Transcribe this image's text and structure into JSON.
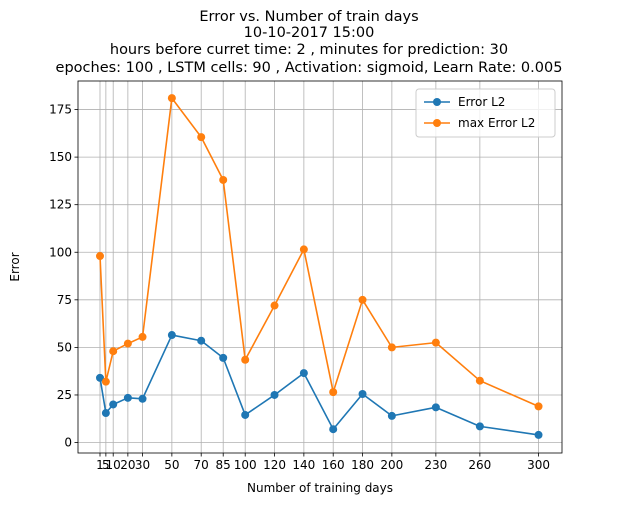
{
  "chart_data": {
    "type": "line",
    "title_lines": [
      "Error vs. Number of train days",
      "10-10-2017 15:00",
      "hours before curret time: 2 , minutes for prediction: 30",
      "epoches: 100 , LSTM cells: 90 , Activation: sigmoid, Learn Rate: 0.005"
    ],
    "xlabel": "Number of training days",
    "ylabel": "Error",
    "x": [
      1,
      5,
      10,
      20,
      30,
      50,
      70,
      85,
      100,
      120,
      140,
      160,
      180,
      200,
      230,
      260,
      300
    ],
    "x_tick_labels": [
      "1",
      "5",
      "10",
      "20",
      "30",
      "50",
      "70",
      "85",
      "100",
      "120",
      "140",
      "160",
      "180",
      "200",
      "230",
      "260",
      "300"
    ],
    "y_ticks": [
      0,
      25,
      50,
      75,
      100,
      125,
      150,
      175
    ],
    "y_tick_labels": [
      "0",
      "25",
      "50",
      "75",
      "100",
      "125",
      "150",
      "175"
    ],
    "xlim": [
      -14,
      316
    ],
    "ylim": [
      -5.5,
      190
    ],
    "grid": true,
    "legend_position": "top-right",
    "series": [
      {
        "name": "Error L2",
        "color": "#1f77b4",
        "values": [
          34,
          15.5,
          20,
          23.5,
          23,
          56.5,
          53.5,
          44.5,
          14.5,
          25,
          36.5,
          7,
          25.5,
          14,
          18.5,
          8.5,
          4
        ]
      },
      {
        "name": "max Error L2",
        "color": "#ff7f0e",
        "values": [
          98,
          32,
          48,
          52,
          55.5,
          181,
          160.5,
          138,
          43.5,
          72,
          101.5,
          26.5,
          75,
          50,
          52.5,
          32.5,
          19
        ]
      }
    ]
  }
}
